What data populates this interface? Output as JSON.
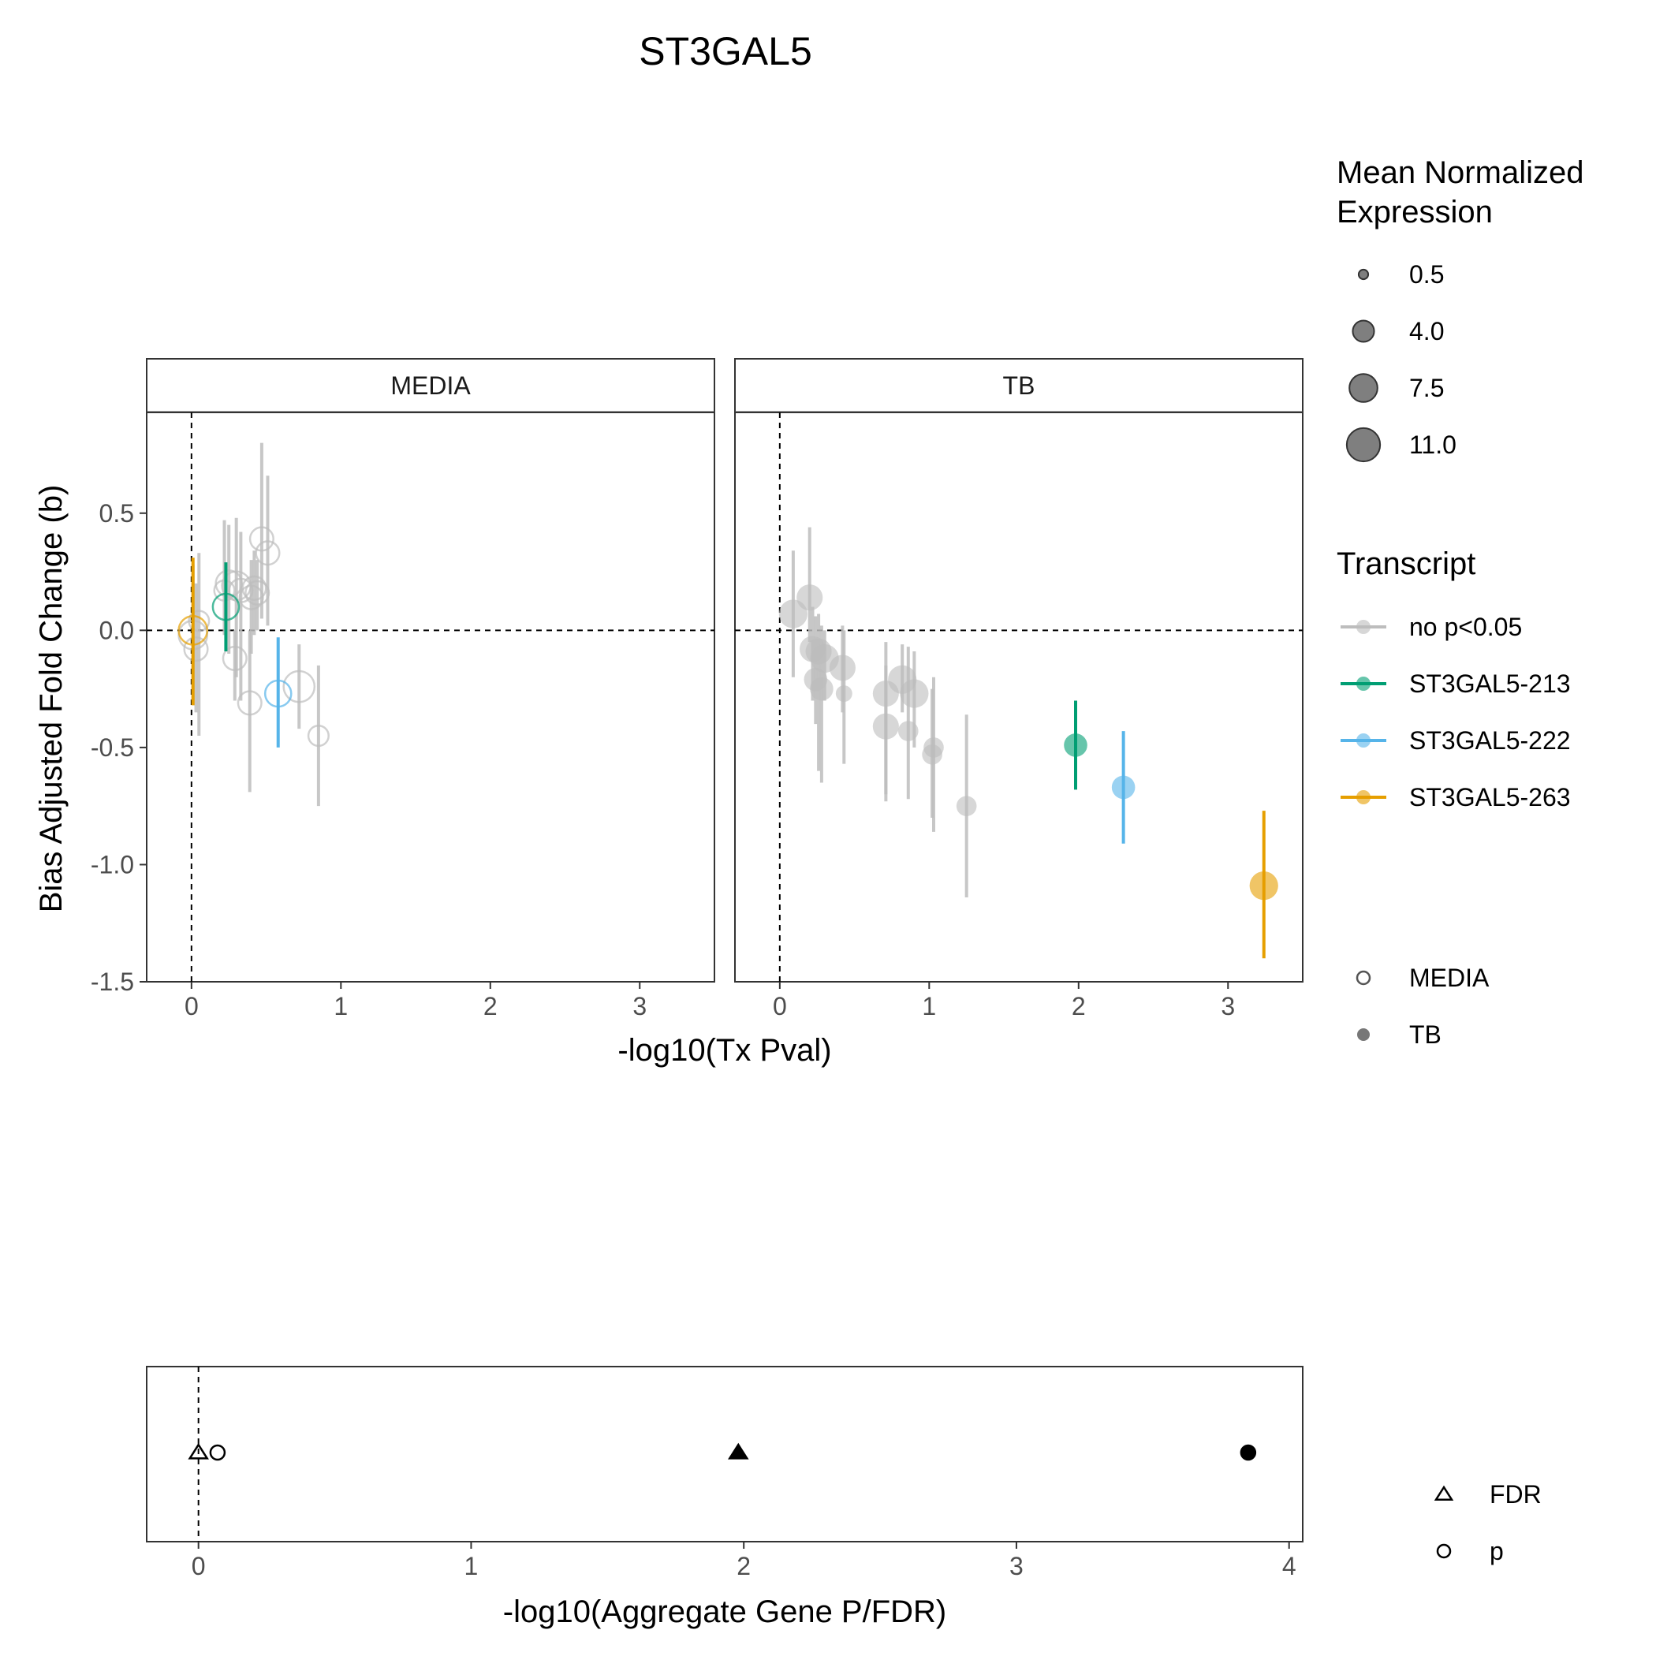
{
  "chart_data": [
    {
      "type": "scatter",
      "title": "ST3GAL5",
      "xlabel": "-log10(Tx Pval)",
      "ylabel": "Bias Adjusted Fold Change (b)",
      "facets": [
        "MEDIA",
        "TB"
      ],
      "xlim": [
        -0.3,
        3.5
      ],
      "ylim": [
        -1.5,
        0.93
      ],
      "x_ticks": [
        0,
        1,
        2,
        3
      ],
      "y_ticks": [
        0.5,
        0.0,
        -0.5,
        -1.0,
        -1.5
      ],
      "x_tick_labels": [
        "0",
        "1",
        "2",
        "3"
      ],
      "y_tick_labels": [
        "0.5",
        "0.0",
        "-0.5",
        "-1.0",
        "-1.5"
      ],
      "reference_lines": {
        "x": 0,
        "y": 0
      },
      "grid": false,
      "legend_position": "right",
      "size_legend": {
        "title": "Mean Normalized Expression",
        "values": [
          0.5,
          4.0,
          7.5,
          11.0
        ],
        "labels": [
          "0.5",
          "4.0",
          "7.5",
          "11.0"
        ]
      },
      "color_legend": {
        "title": "Transcript",
        "items": [
          {
            "label": "no p<0.05",
            "color": "#bdbdbd"
          },
          {
            "label": "ST3GAL5-213",
            "color": "#009e73"
          },
          {
            "label": "ST3GAL5-222",
            "color": "#56b4e9"
          },
          {
            "label": "ST3GAL5-263",
            "color": "#e69f00"
          }
        ]
      },
      "shape_legend": {
        "items": [
          {
            "label": "MEDIA",
            "shape": "open-circle"
          },
          {
            "label": "TB",
            "shape": "filled-circle"
          }
        ]
      },
      "points": [
        {
          "facet": "MEDIA",
          "transcript": "no p<0.05",
          "x": 0.01,
          "y": -0.02,
          "ylo": -0.3,
          "yhi": 0.28,
          "expr": 6
        },
        {
          "facet": "MEDIA",
          "transcript": "no p<0.05",
          "x": 0.03,
          "y": -0.08,
          "ylo": -0.35,
          "yhi": 0.2,
          "expr": 4
        },
        {
          "facet": "MEDIA",
          "transcript": "no p<0.05",
          "x": 0.05,
          "y": 0.04,
          "ylo": -0.45,
          "yhi": 0.33,
          "expr": 3
        },
        {
          "facet": "MEDIA",
          "transcript": "no p<0.05",
          "x": 0.22,
          "y": 0.17,
          "ylo": -0.02,
          "yhi": 0.47,
          "expr": 3
        },
        {
          "facet": "MEDIA",
          "transcript": "no p<0.05",
          "x": 0.25,
          "y": 0.2,
          "ylo": -0.1,
          "yhi": 0.45,
          "expr": 5
        },
        {
          "facet": "MEDIA",
          "transcript": "no p<0.05",
          "x": 0.3,
          "y": 0.19,
          "ylo": -0.2,
          "yhi": 0.48,
          "expr": 6
        },
        {
          "facet": "MEDIA",
          "transcript": "no p<0.05",
          "x": 0.29,
          "y": -0.12,
          "ylo": -0.3,
          "yhi": 0.0,
          "expr": 4
        },
        {
          "facet": "MEDIA",
          "transcript": "no p<0.05",
          "x": 0.33,
          "y": 0.17,
          "ylo": -0.3,
          "yhi": 0.42,
          "expr": 4
        },
        {
          "facet": "MEDIA",
          "transcript": "no p<0.05",
          "x": 0.39,
          "y": -0.31,
          "ylo": -0.69,
          "yhi": 0.0,
          "expr": 4
        },
        {
          "facet": "MEDIA",
          "transcript": "no p<0.05",
          "x": 0.4,
          "y": 0.14,
          "ylo": -0.1,
          "yhi": 0.3,
          "expr": 4
        },
        {
          "facet": "MEDIA",
          "transcript": "no p<0.05",
          "x": 0.42,
          "y": 0.18,
          "ylo": -0.02,
          "yhi": 0.34,
          "expr": 4
        },
        {
          "facet": "MEDIA",
          "transcript": "no p<0.05",
          "x": 0.44,
          "y": 0.16,
          "ylo": 0.0,
          "yhi": 0.3,
          "expr": 4
        },
        {
          "facet": "MEDIA",
          "transcript": "no p<0.05",
          "x": 0.47,
          "y": 0.39,
          "ylo": 0.05,
          "yhi": 0.8,
          "expr": 4
        },
        {
          "facet": "MEDIA",
          "transcript": "no p<0.05",
          "x": 0.51,
          "y": 0.33,
          "ylo": 0.02,
          "yhi": 0.66,
          "expr": 4
        },
        {
          "facet": "MEDIA",
          "transcript": "no p<0.05",
          "x": 0.72,
          "y": -0.24,
          "ylo": -0.42,
          "yhi": -0.06,
          "expr": 7
        },
        {
          "facet": "MEDIA",
          "transcript": "no p<0.05",
          "x": 0.85,
          "y": -0.45,
          "ylo": -0.75,
          "yhi": -0.15,
          "expr": 3
        },
        {
          "facet": "MEDIA",
          "transcript": "ST3GAL5-213",
          "x": 0.23,
          "y": 0.1,
          "ylo": -0.09,
          "yhi": 0.29,
          "expr": 5
        },
        {
          "facet": "MEDIA",
          "transcript": "ST3GAL5-222",
          "x": 0.58,
          "y": -0.27,
          "ylo": -0.5,
          "yhi": -0.03,
          "expr": 5
        },
        {
          "facet": "MEDIA",
          "transcript": "ST3GAL5-263",
          "x": 0.01,
          "y": 0.0,
          "ylo": -0.32,
          "yhi": 0.31,
          "expr": 6
        },
        {
          "facet": "TB",
          "transcript": "no p<0.05",
          "x": 0.09,
          "y": 0.07,
          "ylo": -0.2,
          "yhi": 0.34,
          "expr": 6
        },
        {
          "facet": "TB",
          "transcript": "no p<0.05",
          "x": 0.2,
          "y": 0.14,
          "ylo": -0.05,
          "yhi": 0.44,
          "expr": 5
        },
        {
          "facet": "TB",
          "transcript": "no p<0.05",
          "x": 0.22,
          "y": -0.08,
          "ylo": -0.3,
          "yhi": 0.1,
          "expr": 5
        },
        {
          "facet": "TB",
          "transcript": "no p<0.05",
          "x": 0.24,
          "y": -0.21,
          "ylo": -0.4,
          "yhi": 0.06,
          "expr": 4
        },
        {
          "facet": "TB",
          "transcript": "no p<0.05",
          "x": 0.26,
          "y": -0.09,
          "ylo": -0.6,
          "yhi": 0.07,
          "expr": 5
        },
        {
          "facet": "TB",
          "transcript": "no p<0.05",
          "x": 0.28,
          "y": -0.25,
          "ylo": -0.65,
          "yhi": 0.02,
          "expr": 4
        },
        {
          "facet": "TB",
          "transcript": "no p<0.05",
          "x": 0.3,
          "y": -0.12,
          "ylo": -0.3,
          "yhi": 0.0,
          "expr": 6
        },
        {
          "facet": "TB",
          "transcript": "no p<0.05",
          "x": 0.42,
          "y": -0.16,
          "ylo": -0.35,
          "yhi": 0.02,
          "expr": 5
        },
        {
          "facet": "TB",
          "transcript": "no p<0.05",
          "x": 0.43,
          "y": -0.27,
          "ylo": -0.57,
          "yhi": 0.0,
          "expr": 2
        },
        {
          "facet": "TB",
          "transcript": "no p<0.05",
          "x": 0.71,
          "y": -0.27,
          "ylo": -0.73,
          "yhi": -0.05,
          "expr": 5
        },
        {
          "facet": "TB",
          "transcript": "no p<0.05",
          "x": 0.71,
          "y": -0.41,
          "ylo": -0.7,
          "yhi": -0.15,
          "expr": 5
        },
        {
          "facet": "TB",
          "transcript": "no p<0.05",
          "x": 0.82,
          "y": -0.21,
          "ylo": -0.35,
          "yhi": -0.06,
          "expr": 6
        },
        {
          "facet": "TB",
          "transcript": "no p<0.05",
          "x": 0.86,
          "y": -0.43,
          "ylo": -0.72,
          "yhi": -0.07,
          "expr": 3
        },
        {
          "facet": "TB",
          "transcript": "no p<0.05",
          "x": 0.9,
          "y": -0.27,
          "ylo": -0.5,
          "yhi": -0.09,
          "expr": 6
        },
        {
          "facet": "TB",
          "transcript": "no p<0.05",
          "x": 1.02,
          "y": -0.53,
          "ylo": -0.8,
          "yhi": -0.25,
          "expr": 3
        },
        {
          "facet": "TB",
          "transcript": "no p<0.05",
          "x": 1.03,
          "y": -0.5,
          "ylo": -0.86,
          "yhi": -0.2,
          "expr": 3
        },
        {
          "facet": "TB",
          "transcript": "no p<0.05",
          "x": 1.25,
          "y": -0.75,
          "ylo": -1.14,
          "yhi": -0.36,
          "expr": 3
        },
        {
          "facet": "TB",
          "transcript": "ST3GAL5-213",
          "x": 1.98,
          "y": -0.49,
          "ylo": -0.68,
          "yhi": -0.3,
          "expr": 4
        },
        {
          "facet": "TB",
          "transcript": "ST3GAL5-222",
          "x": 2.3,
          "y": -0.67,
          "ylo": -0.91,
          "yhi": -0.43,
          "expr": 4
        },
        {
          "facet": "TB",
          "transcript": "ST3GAL5-263",
          "x": 3.24,
          "y": -1.09,
          "ylo": -1.4,
          "yhi": -0.77,
          "expr": 6
        }
      ]
    },
    {
      "type": "scatter",
      "xlabel": "-log10(Aggregate Gene P/FDR)",
      "xlim": [
        -0.19,
        4.05
      ],
      "x_ticks": [
        0,
        1,
        2,
        3,
        4
      ],
      "x_tick_labels": [
        "0",
        "1",
        "2",
        "3",
        "4"
      ],
      "reference_lines": {
        "x": 0
      },
      "grid": false,
      "legend_position": "right",
      "shape_legend": {
        "items": [
          {
            "label": "FDR",
            "shape": "triangle"
          },
          {
            "label": "p",
            "shape": "circle"
          }
        ]
      },
      "points": [
        {
          "metric": "FDR",
          "condition": "MEDIA",
          "x": 0.0
        },
        {
          "metric": "p",
          "condition": "MEDIA",
          "x": 0.07
        },
        {
          "metric": "FDR",
          "condition": "TB",
          "x": 1.98
        },
        {
          "metric": "p",
          "condition": "TB",
          "x": 3.85
        }
      ]
    }
  ]
}
